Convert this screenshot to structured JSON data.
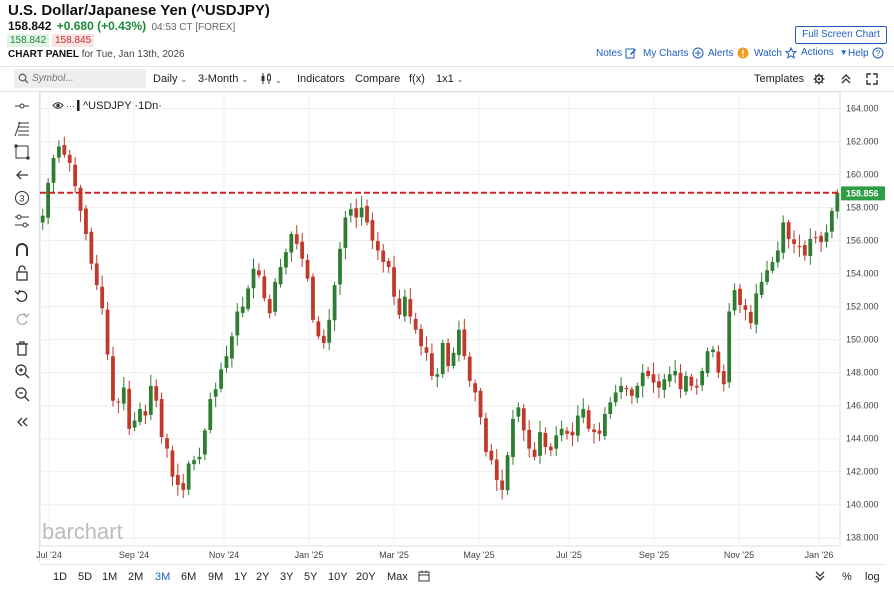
{
  "header": {
    "title": "U.S. Dollar/Japanese Yen (^USDJPY)",
    "last": "158.842",
    "change": "+0.680 (+0.43%)",
    "time": "04:53 CT [FOREX]",
    "bid": "158.842",
    "ask": "158.845",
    "panel_label": "CHART PANEL",
    "panel_date": "for Tue, Jan 13th, 2026",
    "full_screen": "Full Screen Chart"
  },
  "top_links": {
    "notes": "Notes",
    "my_charts": "My Charts",
    "alerts": "Alerts",
    "watch": "Watch",
    "actions": "Actions",
    "help": "Help"
  },
  "toolbar": {
    "search_placeholder": "Symbol...",
    "interval": "Daily",
    "period": "3-Month",
    "indicators": "Indicators",
    "compare": "Compare",
    "fx": "f(x)",
    "layout": "1x1",
    "templates": "Templates"
  },
  "bottom_bar": {
    "ranges": [
      "1D",
      "5D",
      "1M",
      "2M",
      "3M",
      "6M",
      "9M",
      "1Y",
      "2Y",
      "3Y",
      "5Y",
      "10Y",
      "20Y",
      "Max"
    ],
    "active_range": "3M",
    "percent": "%",
    "log": "log"
  },
  "watermark": "barchart",
  "colors": {
    "up": "#2e7d32",
    "down": "#c0392b",
    "accent": "#1f5fbf",
    "last_price_tag": "#2e9e44",
    "ref_line": "#cc2222"
  },
  "chart_data": {
    "type": "candlestick",
    "title": "^USDJPY ·1Dn·",
    "series_name": "^USDJPY",
    "last_price_label": "158.856",
    "reference_line": 158.9,
    "ylim": [
      137.5,
      165.0
    ],
    "y_ticks": [
      "138.000",
      "140.000",
      "142.000",
      "144.000",
      "146.000",
      "148.000",
      "150.000",
      "152.000",
      "154.000",
      "156.000",
      "158.000",
      "160.000",
      "162.000",
      "164.000"
    ],
    "x_ticks": [
      "Jul '24",
      "Sep '24",
      "Nov '24",
      "Jan '25",
      "Mar '25",
      "May '25",
      "Jul '25",
      "Sep '25",
      "Nov '25",
      "Jan '26"
    ],
    "grid": true,
    "closes": [
      157.5,
      159.5,
      161.0,
      161.7,
      161.2,
      160.7,
      159.3,
      157.8,
      156.4,
      154.6,
      153.3,
      151.9,
      149.1,
      146.3,
      146.2,
      147.1,
      144.6,
      145.1,
      145.8,
      145.4,
      147.2,
      146.3,
      144.1,
      143.4,
      141.7,
      141.2,
      140.9,
      142.5,
      142.7,
      142.9,
      144.5,
      146.4,
      147.0,
      148.2,
      149.0,
      150.2,
      151.7,
      152.0,
      153.1,
      154.3,
      153.9,
      152.5,
      151.6,
      153.5,
      154.4,
      155.3,
      156.4,
      155.8,
      154.9,
      153.7,
      151.2,
      150.2,
      149.8,
      151.2,
      153.3,
      155.5,
      157.4,
      157.9,
      157.4,
      158.0,
      157.1,
      156.0,
      155.4,
      154.7,
      154.4,
      152.6,
      151.5,
      152.6,
      151.4,
      150.6,
      149.6,
      149.2,
      147.8,
      147.9,
      149.8,
      148.4,
      149.2,
      150.6,
      149.0,
      147.5,
      146.8,
      145.3,
      143.2,
      142.7,
      141.5,
      140.9,
      143.0,
      145.2,
      145.9,
      144.5,
      143.4,
      142.9,
      144.4,
      143.5,
      143.3,
      144.2,
      144.6,
      144.3,
      144.2,
      145.4,
      145.8,
      144.6,
      144.4,
      144.3,
      145.5,
      146.2,
      146.8,
      147.2,
      147.0,
      146.6,
      147.2,
      148.0,
      147.8,
      147.4,
      147.1,
      147.6,
      147.9,
      148.1,
      147.0,
      147.8,
      147.2,
      147.1,
      148.1,
      149.3,
      149.4,
      148.0,
      147.3,
      151.7,
      153.0,
      152.1,
      151.8,
      151.0,
      152.8,
      153.5,
      154.2,
      154.7,
      155.4,
      157.1,
      156.1,
      155.8,
      155.6,
      155.1,
      156.1,
      156.2,
      155.9,
      156.5,
      157.8,
      158.9
    ]
  }
}
